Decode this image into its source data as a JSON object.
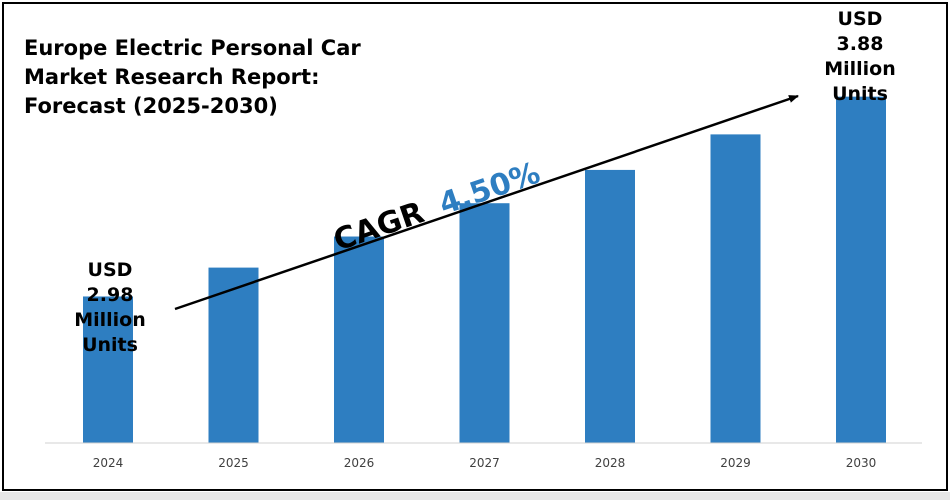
{
  "chart_data": {
    "type": "bar",
    "title_lines": [
      "Europe Electric Personal Car",
      "Market Research Report:",
      "Forecast (2025-2030)"
    ],
    "categories": [
      "2024",
      "2025",
      "2026",
      "2027",
      "2028",
      "2029",
      "2030"
    ],
    "values": [
      2.98,
      3.11,
      3.25,
      3.4,
      3.55,
      3.71,
      3.88
    ],
    "ylim": [
      2.32,
      4.0
    ],
    "grid": false,
    "bar_color": "#2e7ec1",
    "cagr": {
      "label": "CAGR",
      "value": "4.50%",
      "value_color": "#2e7ec1"
    },
    "annotations": {
      "start": [
        "USD",
        "2.98",
        "Million",
        "Units"
      ],
      "end": [
        "USD",
        "3.88",
        "Million",
        "Units"
      ]
    }
  }
}
